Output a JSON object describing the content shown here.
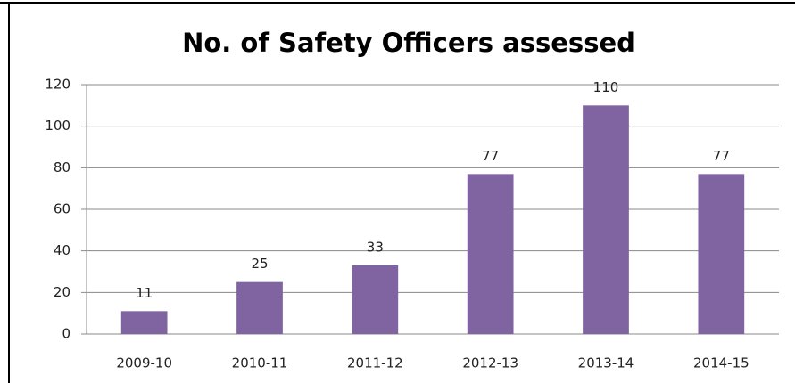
{
  "chart_data": {
    "type": "bar",
    "title": "No. of Safety Officers assessed",
    "categories": [
      "2009-10",
      "2010-11",
      "2011-12",
      "2012-13",
      "2013-14",
      "2014-15"
    ],
    "values": [
      11,
      25,
      33,
      77,
      110,
      77
    ],
    "color": "#8064a2",
    "ylim": [
      0,
      120
    ],
    "yticks": [
      0,
      20,
      40,
      60,
      80,
      100,
      120
    ],
    "grid": true
  }
}
